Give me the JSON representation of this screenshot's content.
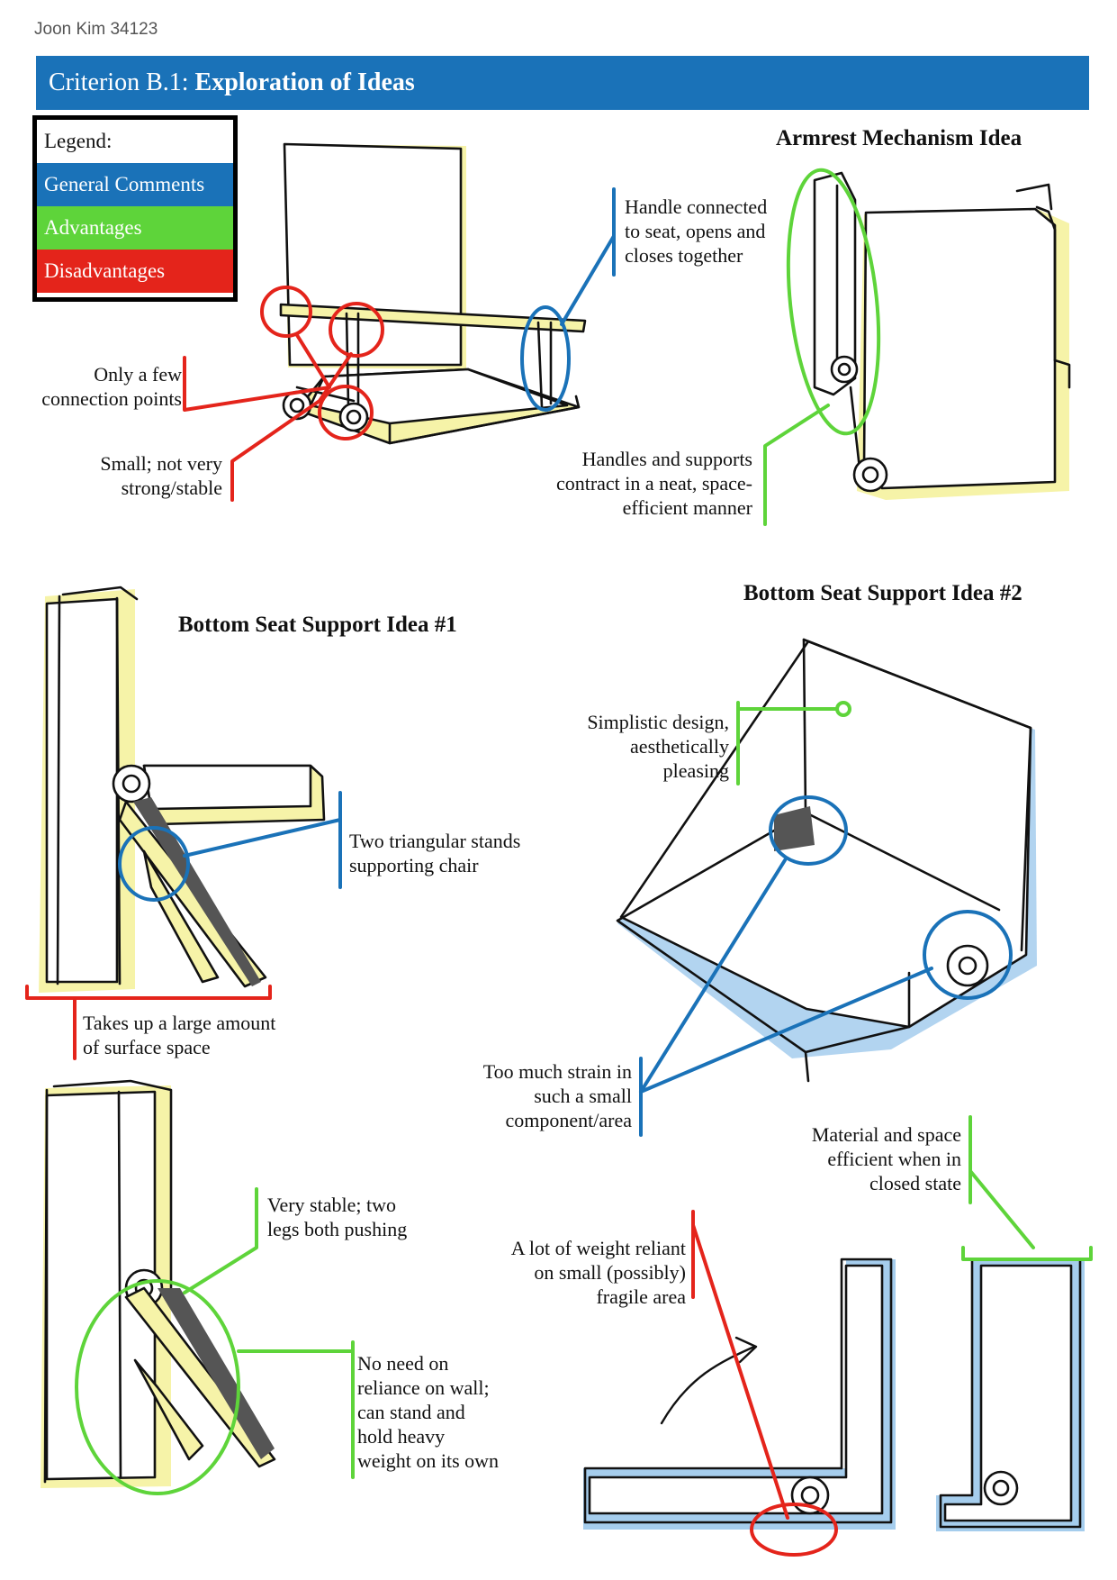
{
  "author": "Joon Kim 34123",
  "header": {
    "prefix": "Criterion B.1: ",
    "title": "Exploration of Ideas",
    "color": "#1a72b8"
  },
  "legend": {
    "title": "Legend:",
    "items": [
      {
        "label": "General Comments",
        "color": "#1a72b8"
      },
      {
        "label": "Advantages",
        "color": "#5ed43a"
      },
      {
        "label": "Disadvantages",
        "color": "#e4241b"
      }
    ]
  },
  "colors": {
    "general": "#1a72b8",
    "advantage": "#5ed43a",
    "disadvantage": "#e4241b",
    "fill_yellow": "#f6f3a8",
    "fill_blue": "#7fb8e6"
  },
  "headings": {
    "armrest": "Armrest Mechanism Idea",
    "support1": "Bottom Seat Support Idea #1",
    "support2": "Bottom Seat Support Idea #2"
  },
  "notes": {
    "handle": "Handle connected\nto seat, opens and\ncloses together",
    "few_points": "Only a few\nconnection points",
    "small": "Small; not very\nstrong/stable",
    "handles_contract": "Handles and supports\ncontract in a neat, space-\nefficient manner",
    "triangular": "Two triangular stands\nsupporting chair",
    "surface": "Takes up a large amount\nof surface space",
    "simplistic": "Simplistic design,\naesthetically\npleasing",
    "strain": "Too much strain in\nsuch a small\ncomponent/area",
    "material": "Material and space\nefficient when in\nclosed state",
    "weight": "A lot of weight reliant\non small (possibly)\nfragile area",
    "very_stable": "Very stable; two\nlegs both pushing",
    "no_need": "No need on\nreliance on wall;\ncan stand and\nhold heavy\nweight on its own"
  }
}
